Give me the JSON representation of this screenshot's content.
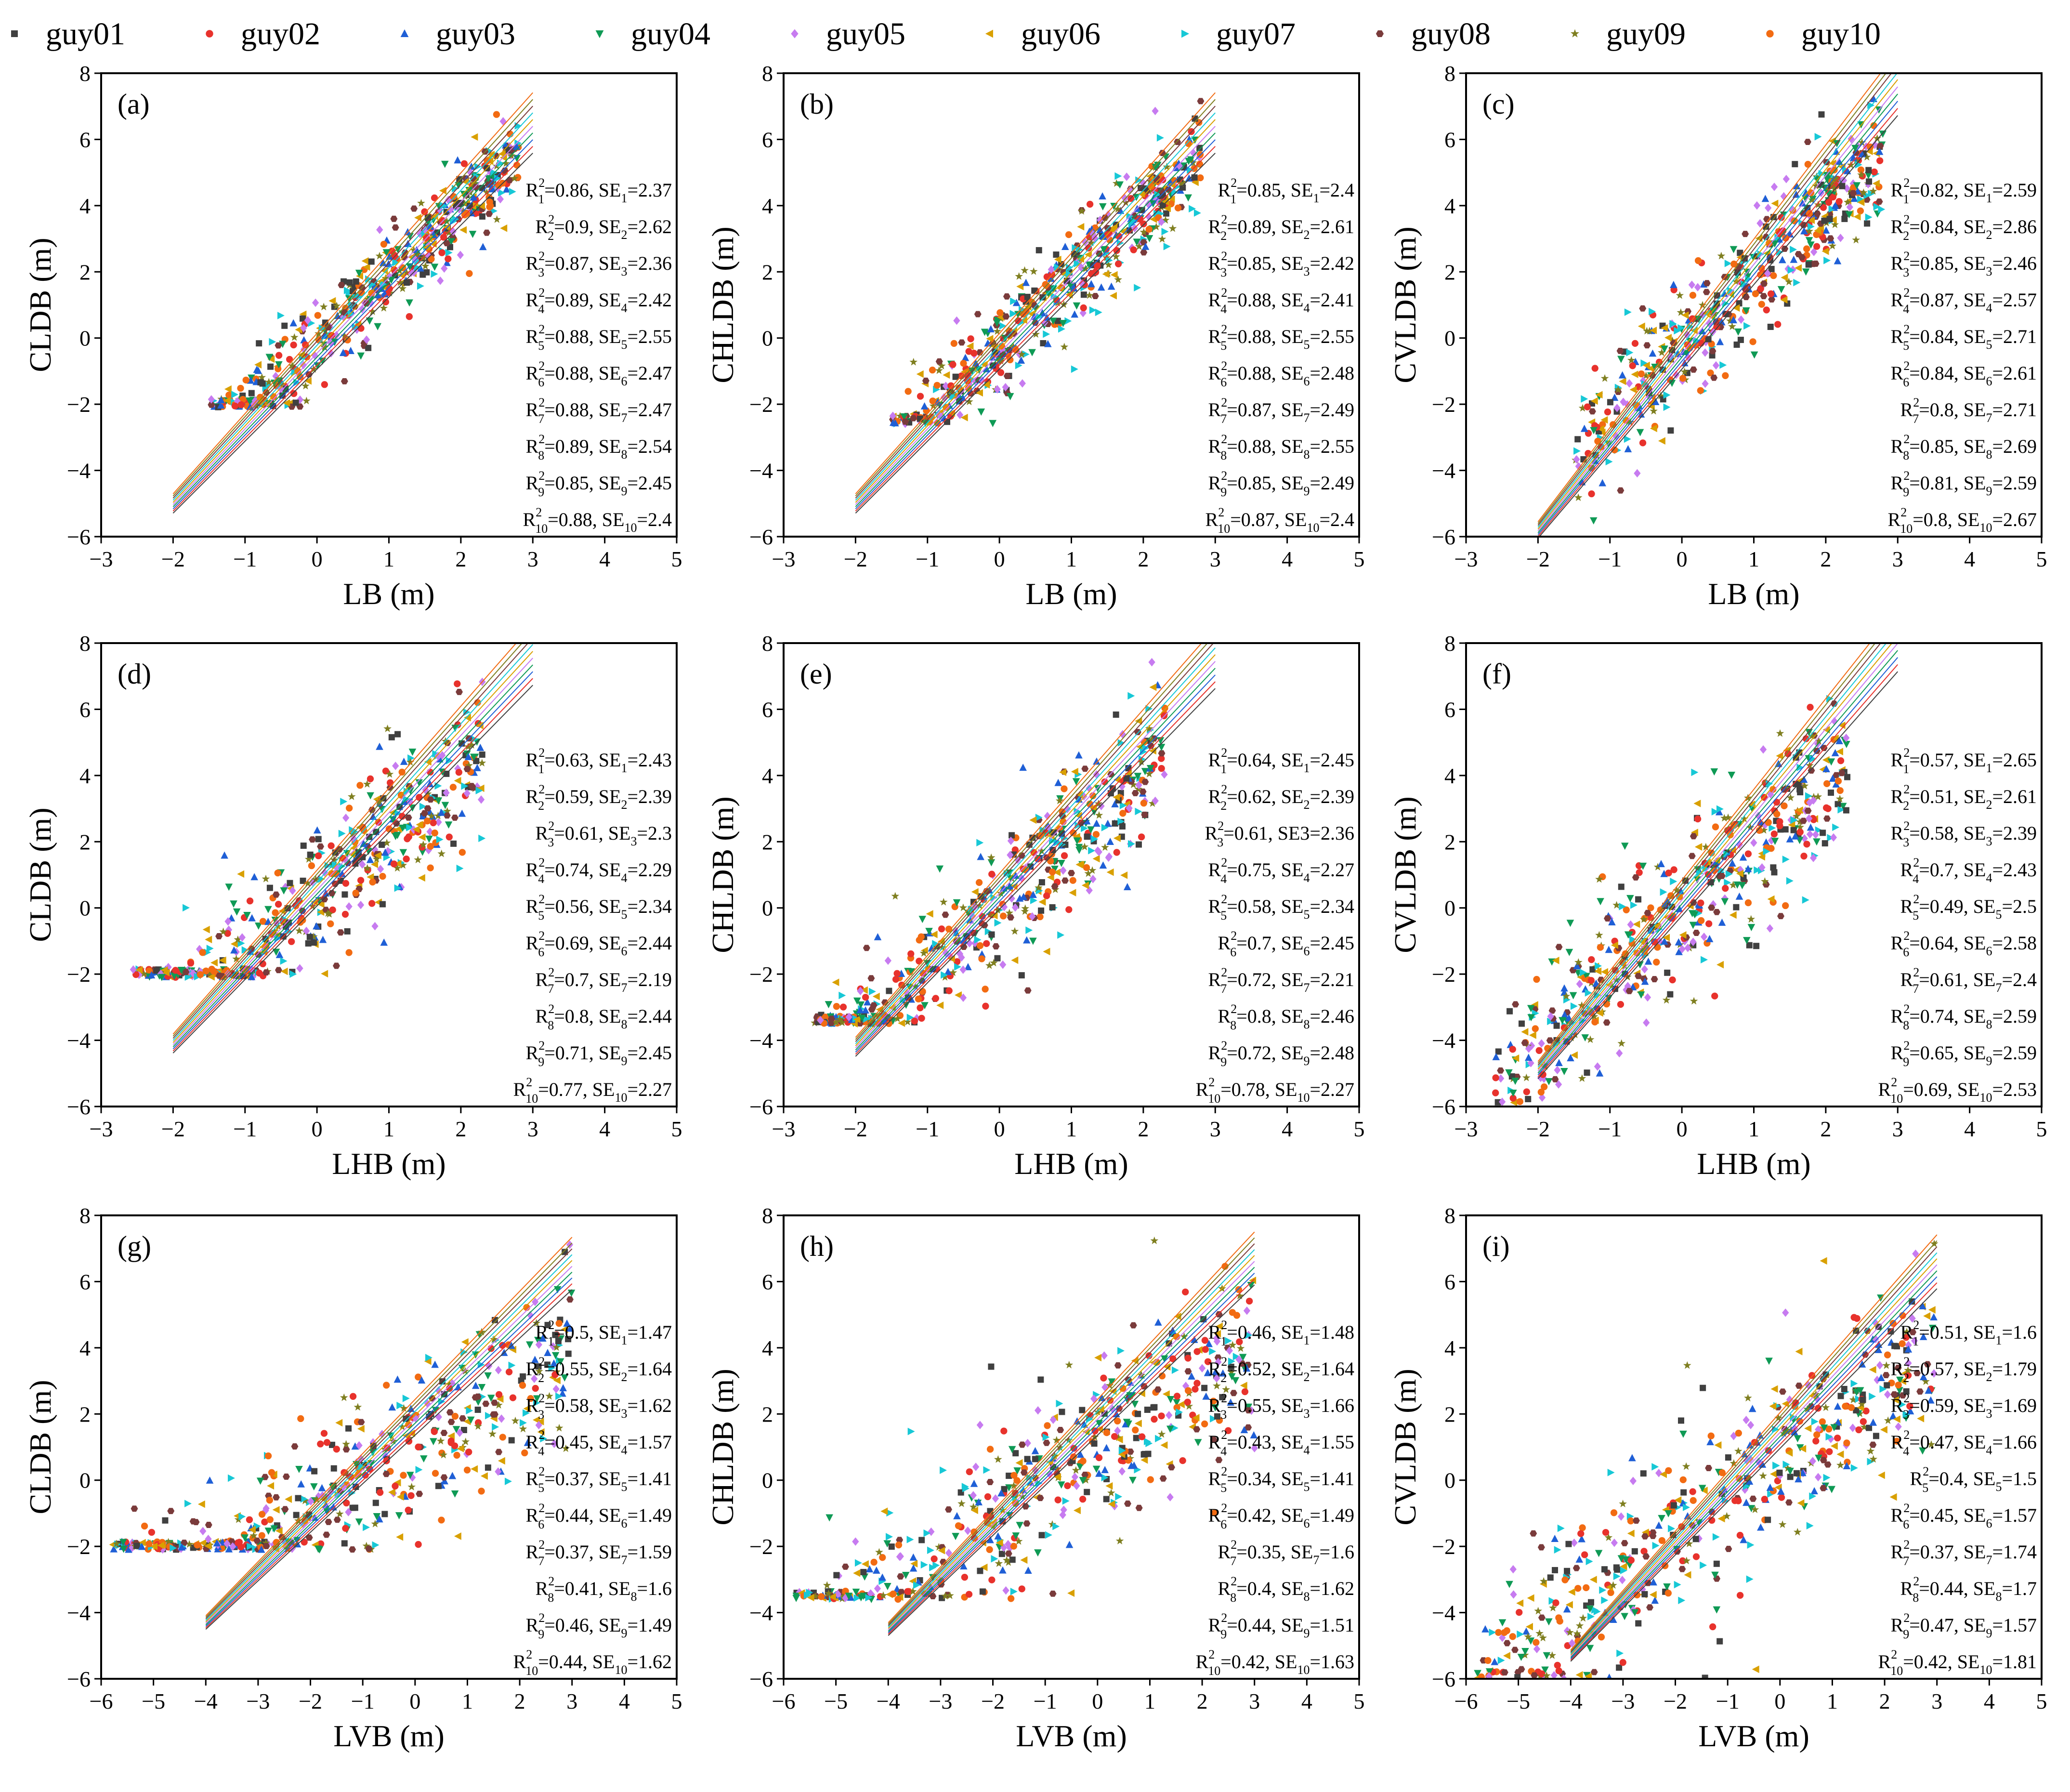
{
  "legend": [
    {
      "name": "guy01",
      "color": "#404040",
      "marker": "square"
    },
    {
      "name": "guy02",
      "color": "#e8322c",
      "marker": "circle"
    },
    {
      "name": "guy03",
      "color": "#1f5fd6",
      "marker": "triangle-up"
    },
    {
      "name": "guy04",
      "color": "#0f9a55",
      "marker": "triangle-down"
    },
    {
      "name": "guy05",
      "color": "#c77bf0",
      "marker": "diamond"
    },
    {
      "name": "guy06",
      "color": "#d9a000",
      "marker": "triangle-left"
    },
    {
      "name": "guy07",
      "color": "#17c8d6",
      "marker": "triangle-right"
    },
    {
      "name": "guy08",
      "color": "#7a3b3b",
      "marker": "hexagon"
    },
    {
      "name": "guy09",
      "color": "#7f7f20",
      "marker": "star"
    },
    {
      "name": "guy10",
      "color": "#f26b12",
      "marker": "circle"
    }
  ],
  "chart_data": [
    {
      "type": "scatter",
      "label": "(a)",
      "xlabel": "LB (m)",
      "ylabel": "CLDB (m)",
      "xlim": [
        -3,
        5
      ],
      "ylim": [
        -6,
        8
      ],
      "xticks": [
        -3,
        -2,
        -1,
        0,
        1,
        2,
        3,
        4,
        5
      ],
      "yticks": [
        -6,
        -4,
        -2,
        0,
        2,
        4,
        6,
        8
      ],
      "cloud": {
        "x_range": [
          -1.5,
          2.8
        ],
        "slope": 2.05,
        "intercept": -0.2,
        "spread": 0.85,
        "floor": -2.1
      },
      "fit_x_range": [
        -2,
        3
      ],
      "fit_slope": 2.3,
      "fit_intercept": -0.4,
      "stats": [
        {
          "r2": "0.86",
          "se": "2.37"
        },
        {
          "r2": "0.9",
          "se": "2.62"
        },
        {
          "r2": "0.87",
          "se": "2.36"
        },
        {
          "r2": "0.89",
          "se": "2.42"
        },
        {
          "r2": "0.88",
          "se": "2.55"
        },
        {
          "r2": "0.88",
          "se": "2.47"
        },
        {
          "r2": "0.88",
          "se": "2.47"
        },
        {
          "r2": "0.89",
          "se": "2.54"
        },
        {
          "r2": "0.85",
          "se": "2.45"
        },
        {
          "r2": "0.88",
          "se": "2.4"
        }
      ]
    },
    {
      "type": "scatter",
      "label": "(b)",
      "xlabel": "LB (m)",
      "ylabel": "CHLDB (m)",
      "xlim": [
        -3,
        5
      ],
      "ylim": [
        -6,
        8
      ],
      "xticks": [
        -3,
        -2,
        -1,
        0,
        1,
        2,
        3,
        4,
        5
      ],
      "yticks": [
        -6,
        -4,
        -2,
        0,
        2,
        4,
        6,
        8
      ],
      "cloud": {
        "x_range": [
          -1.5,
          2.8
        ],
        "slope": 2.1,
        "intercept": -0.3,
        "spread": 1.0,
        "floor": -2.6
      },
      "fit_x_range": [
        -2,
        3
      ],
      "fit_slope": 2.3,
      "fit_intercept": -0.4,
      "stats": [
        {
          "r2": "0.85",
          "se": "2.4"
        },
        {
          "r2": "0.89",
          "se": "2.61"
        },
        {
          "r2": "0.85",
          "se": "2.42"
        },
        {
          "r2": "0.88",
          "se": "2.41"
        },
        {
          "r2": "0.88",
          "se": "2.55"
        },
        {
          "r2": "0.88",
          "se": "2.48"
        },
        {
          "r2": "0.87",
          "se": "2.49"
        },
        {
          "r2": "0.88",
          "se": "2.55"
        },
        {
          "r2": "0.85",
          "se": "2.49"
        },
        {
          "r2": "0.87",
          "se": "2.4"
        }
      ]
    },
    {
      "type": "scatter",
      "label": "(c)",
      "xlabel": "LB (m)",
      "ylabel": "CVLDB (m)",
      "xlim": [
        -3,
        5
      ],
      "ylim": [
        -6,
        8
      ],
      "xticks": [
        -3,
        -2,
        -1,
        0,
        1,
        2,
        3,
        4,
        5
      ],
      "yticks": [
        -6,
        -4,
        -2,
        0,
        2,
        4,
        6,
        8
      ],
      "cloud": {
        "x_range": [
          -1.5,
          2.8
        ],
        "slope": 2.05,
        "intercept": -0.2,
        "spread": 1.2,
        "floor": -6
      },
      "fit_x_range": [
        -2,
        3
      ],
      "fit_slope": 2.7,
      "fit_intercept": -0.4,
      "stats": [
        {
          "r2": "0.82",
          "se": "2.59"
        },
        {
          "r2": "0.84",
          "se": "2.86"
        },
        {
          "r2": "0.85",
          "se": "2.46"
        },
        {
          "r2": "0.87",
          "se": "2.57"
        },
        {
          "r2": "0.84",
          "se": "2.71"
        },
        {
          "r2": "0.84",
          "se": "2.61"
        },
        {
          "r2": "0.8",
          "se": "2.71"
        },
        {
          "r2": "0.85",
          "se": "2.69"
        },
        {
          "r2": "0.81",
          "se": "2.59"
        },
        {
          "r2": "0.8",
          "se": "2.67"
        }
      ]
    },
    {
      "type": "scatter",
      "label": "(d)",
      "xlabel": "LHB (m)",
      "ylabel": "CLDB (m)",
      "xlim": [
        -3,
        5
      ],
      "ylim": [
        -6,
        8
      ],
      "xticks": [
        -3,
        -2,
        -1,
        0,
        1,
        2,
        3,
        4,
        5
      ],
      "yticks": [
        -6,
        -4,
        -2,
        0,
        2,
        4,
        6,
        8
      ],
      "cloud": {
        "x_range": [
          -2.6,
          2.3
        ],
        "slope": 1.9,
        "intercept": 0.2,
        "spread": 1.4,
        "floor": -2.1
      },
      "fit_x_range": [
        -2,
        3
      ],
      "fit_slope": 2.35,
      "fit_intercept": 0.6,
      "stats": [
        {
          "r2": "0.63",
          "se": "2.43"
        },
        {
          "r2": "0.59",
          "se": "2.39"
        },
        {
          "r2": "0.61",
          "se": "2.3"
        },
        {
          "r2": "0.74",
          "se": "2.29"
        },
        {
          "r2": "0.56",
          "se": "2.34"
        },
        {
          "r2": "0.69",
          "se": "2.44"
        },
        {
          "r2": "0.7",
          "se": "2.19"
        },
        {
          "r2": "0.8",
          "se": "2.44"
        },
        {
          "r2": "0.71",
          "se": "2.45"
        },
        {
          "r2": "0.77",
          "se": "2.27"
        }
      ]
    },
    {
      "type": "scatter",
      "label": "(e)",
      "xlabel": "LHB (m)",
      "ylabel": "CHLDB (m)",
      "xlim": [
        -3,
        5
      ],
      "ylim": [
        -6,
        8
      ],
      "xticks": [
        -3,
        -2,
        -1,
        0,
        1,
        2,
        3,
        4,
        5
      ],
      "yticks": [
        -6,
        -4,
        -2,
        0,
        2,
        4,
        6,
        8
      ],
      "cloud": {
        "x_range": [
          -2.6,
          2.3
        ],
        "slope": 1.95,
        "intercept": 0.1,
        "spread": 1.4,
        "floor": -3.5
      },
      "fit_x_range": [
        -2,
        3
      ],
      "fit_slope": 2.35,
      "fit_intercept": 0.5,
      "stats": [
        {
          "r2": "0.64",
          "se": "2.45"
        },
        {
          "r2": "0.62",
          "se": "2.39"
        },
        {
          "r2": "0.61",
          "se": "2.36",
          "se_plain": true
        },
        {
          "r2": "0.75",
          "se": "2.27"
        },
        {
          "r2": "0.58",
          "se": "2.34"
        },
        {
          "r2": "0.7",
          "se": "2.45"
        },
        {
          "r2": "0.72",
          "se": "2.21"
        },
        {
          "r2": "0.8",
          "se": "2.46"
        },
        {
          "r2": "0.72",
          "se": "2.48"
        },
        {
          "r2": "0.78",
          "se": "2.27"
        }
      ]
    },
    {
      "type": "scatter",
      "label": "(f)",
      "xlabel": "LHB (m)",
      "ylabel": "CVLDB (m)",
      "xlim": [
        -3,
        5
      ],
      "ylim": [
        -6,
        8
      ],
      "xticks": [
        -3,
        -2,
        -1,
        0,
        1,
        2,
        3,
        4,
        5
      ],
      "yticks": [
        -6,
        -4,
        -2,
        0,
        2,
        4,
        6,
        8
      ],
      "cloud": {
        "x_range": [
          -2.6,
          2.3
        ],
        "slope": 1.9,
        "intercept": 0.0,
        "spread": 1.5,
        "floor": -6
      },
      "fit_x_range": [
        -2,
        3
      ],
      "fit_slope": 2.6,
      "fit_intercept": 0.3,
      "stats": [
        {
          "r2": "0.57",
          "se": "2.65"
        },
        {
          "r2": "0.51",
          "se": "2.61"
        },
        {
          "r2": "0.58",
          "se": "2.39"
        },
        {
          "r2": "0.7",
          "se": "2.43"
        },
        {
          "r2": "0.49",
          "se": "2.5"
        },
        {
          "r2": "0.64",
          "se": "2.58"
        },
        {
          "r2": "0.61",
          "se": "2.4"
        },
        {
          "r2": "0.74",
          "se": "2.59"
        },
        {
          "r2": "0.65",
          "se": "2.59"
        },
        {
          "r2": "0.69",
          "se": "2.53"
        }
      ]
    },
    {
      "type": "scatter",
      "label": "(g)",
      "xlabel": "LVB (m)",
      "ylabel": "CLDB (m)",
      "xlim": [
        -6,
        5
      ],
      "ylim": [
        -6,
        8
      ],
      "xticks": [
        -6,
        -5,
        -4,
        -3,
        -2,
        -1,
        0,
        1,
        2,
        3,
        4,
        5
      ],
      "yticks": [
        -6,
        -4,
        -2,
        0,
        2,
        4,
        6,
        8
      ],
      "cloud": {
        "x_range": [
          -5.8,
          3.0
        ],
        "slope": 1.0,
        "intercept": 1.0,
        "spread": 1.6,
        "floor": -2.1
      },
      "fit_x_range": [
        -4,
        3
      ],
      "fit_slope": 1.55,
      "fit_intercept": 1.9,
      "stats": [
        {
          "r2": "0.5",
          "se": "1.47"
        },
        {
          "r2": "0.55",
          "se": "1.64"
        },
        {
          "r2": "0.58",
          "se": "1.62"
        },
        {
          "r2": "0.45",
          "se": "1.57"
        },
        {
          "r2": "0.37",
          "se": "1.41"
        },
        {
          "r2": "0.44",
          "se": "1.49"
        },
        {
          "r2": "0.37",
          "se": "1.59"
        },
        {
          "r2": "0.41",
          "se": "1.6"
        },
        {
          "r2": "0.46",
          "se": "1.49"
        },
        {
          "r2": "0.44",
          "se": "1.62"
        }
      ]
    },
    {
      "type": "scatter",
      "label": "(h)",
      "xlabel": "LVB (m)",
      "ylabel": "CHLDB (m)",
      "xlim": [
        -6,
        5
      ],
      "ylim": [
        -6,
        8
      ],
      "xticks": [
        -6,
        -5,
        -4,
        -3,
        -2,
        -1,
        0,
        1,
        2,
        3,
        4,
        5
      ],
      "yticks": [
        -6,
        -4,
        -2,
        0,
        2,
        4,
        6,
        8
      ],
      "cloud": {
        "x_range": [
          -5.8,
          3.0
        ],
        "slope": 1.05,
        "intercept": 0.9,
        "spread": 1.7,
        "floor": -3.6
      },
      "fit_x_range": [
        -4,
        3
      ],
      "fit_slope": 1.6,
      "fit_intercept": 1.9,
      "stats": [
        {
          "r2": "0.46",
          "se": "1.48"
        },
        {
          "r2": "0.52",
          "se": "1.64"
        },
        {
          "r2": "0.55",
          "se": "1.66"
        },
        {
          "r2": "0.43",
          "se": "1.55"
        },
        {
          "r2": "0.34",
          "se": "1.41"
        },
        {
          "r2": "0.42",
          "se": "1.49"
        },
        {
          "r2": "0.35",
          "se": "1.6"
        },
        {
          "r2": "0.4",
          "se": "1.62"
        },
        {
          "r2": "0.44",
          "se": "1.51"
        },
        {
          "r2": "0.42",
          "se": "1.63"
        }
      ]
    },
    {
      "type": "scatter",
      "label": "(i)",
      "xlabel": "LVB (m)",
      "ylabel": "CVLDB (m)",
      "xlim": [
        -6,
        5
      ],
      "ylim": [
        -6,
        8
      ],
      "xticks": [
        -6,
        -5,
        -4,
        -3,
        -2,
        -1,
        0,
        1,
        2,
        3,
        4,
        5
      ],
      "yticks": [
        -6,
        -4,
        -2,
        0,
        2,
        4,
        6,
        8
      ],
      "cloud": {
        "x_range": [
          -5.8,
          3.0
        ],
        "slope": 1.1,
        "intercept": 0.7,
        "spread": 1.8,
        "floor": -6
      },
      "fit_x_range": [
        -4,
        3
      ],
      "fit_slope": 1.7,
      "fit_intercept": 1.5,
      "stats": [
        {
          "r2": "0.51",
          "se": "1.6"
        },
        {
          "r2": "0.57",
          "se": "1.79"
        },
        {
          "r2": "0.59",
          "se": "1.69"
        },
        {
          "r2": "0.47",
          "se": "1.66"
        },
        {
          "r2": "0.4",
          "se": "1.5"
        },
        {
          "r2": "0.45",
          "se": "1.57"
        },
        {
          "r2": "0.37",
          "se": "1.74"
        },
        {
          "r2": "0.44",
          "se": "1.7"
        },
        {
          "r2": "0.47",
          "se": "1.57"
        },
        {
          "r2": "0.42",
          "se": "1.81"
        }
      ]
    }
  ]
}
